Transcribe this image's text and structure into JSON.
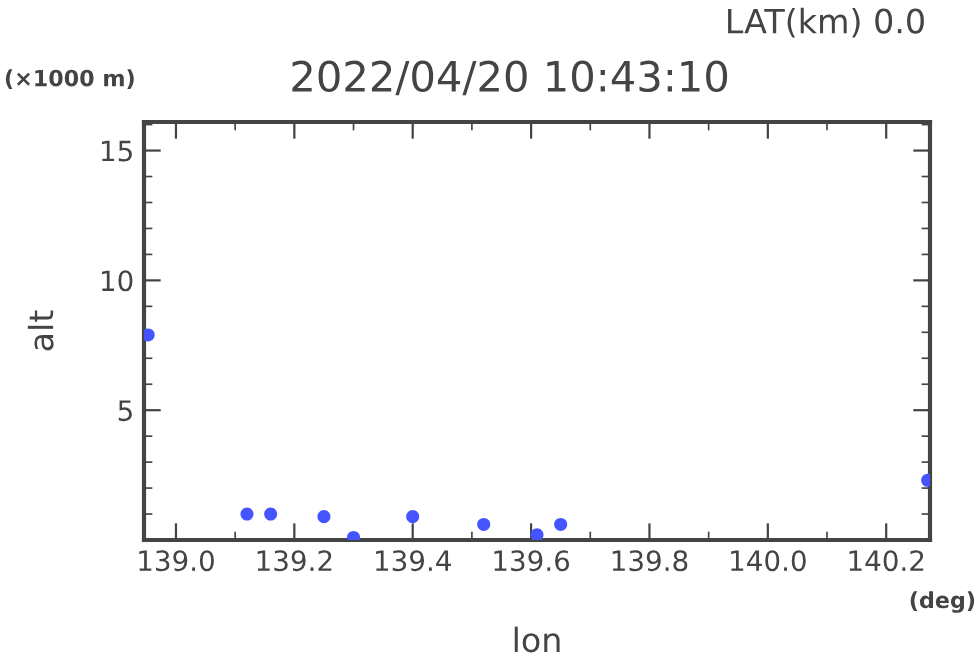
{
  "chart_data": {
    "type": "scatter",
    "title": "2022/04/20 10:43:10",
    "subtitle": "LAT(km) 0.0",
    "xlabel": "lon",
    "ylabel": "alt",
    "annotations": [
      "(×1000 m)",
      "(deg)"
    ],
    "x": [
      138.953,
      139.12,
      139.16,
      139.25,
      139.3,
      139.4,
      139.52,
      139.61,
      139.65,
      140.27
    ],
    "series": [
      {
        "color": "#4455ff",
        "values": [
          7.9,
          1.0,
          1.0,
          0.9,
          0.1,
          0.9,
          0.6,
          0.2,
          0.6,
          2.3
        ]
      }
    ],
    "marker": "circle",
    "grid": false,
    "xlim": [
      138.946,
      140.274
    ],
    "ylim": [
      0,
      16.1
    ],
    "xticks": [
      {
        "value": 139.0,
        "label": "139.0"
      },
      {
        "value": 139.1,
        "label": null
      },
      {
        "value": 139.2,
        "label": "139.2"
      },
      {
        "value": 139.3,
        "label": null
      },
      {
        "value": 139.4,
        "label": "139.4"
      },
      {
        "value": 139.5,
        "label": null
      },
      {
        "value": 139.6,
        "label": "139.6"
      },
      {
        "value": 139.7,
        "label": null
      },
      {
        "value": 139.8,
        "label": "139.8"
      },
      {
        "value": 139.9,
        "label": null
      },
      {
        "value": 140.0,
        "label": "140.0"
      },
      {
        "value": 140.1,
        "label": null
      },
      {
        "value": 140.2,
        "label": "140.2"
      }
    ],
    "yticks": [
      {
        "value": 1,
        "label": null
      },
      {
        "value": 2,
        "label": null
      },
      {
        "value": 3,
        "label": null
      },
      {
        "value": 4,
        "label": null
      },
      5,
      {
        "value": 6,
        "label": null
      },
      {
        "value": 7,
        "label": null
      },
      {
        "value": 8,
        "label": null
      },
      {
        "value": 9,
        "label": null
      },
      10,
      {
        "value": 11,
        "label": null
      },
      {
        "value": 12,
        "label": null
      },
      {
        "value": 13,
        "label": null
      },
      {
        "value": 14,
        "label": null
      },
      15,
      {
        "value": 16,
        "label": null
      }
    ]
  }
}
